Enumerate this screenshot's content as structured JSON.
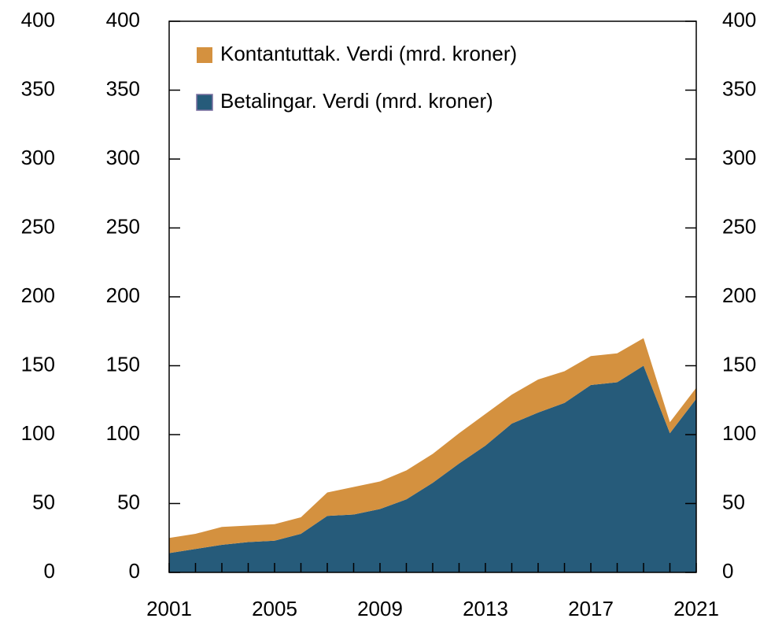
{
  "chart_data": {
    "type": "stacked-area",
    "x": [
      2001,
      2002,
      2003,
      2004,
      2005,
      2006,
      2007,
      2008,
      2009,
      2010,
      2011,
      2012,
      2013,
      2014,
      2015,
      2016,
      2017,
      2018,
      2019,
      2020,
      2021
    ],
    "xlim": [
      2001,
      2021
    ],
    "xticks": [
      2001,
      2005,
      2009,
      2013,
      2017,
      2021
    ],
    "ylim": [
      0,
      400
    ],
    "yticks": [
      0,
      50,
      100,
      150,
      200,
      250,
      300,
      350,
      400
    ],
    "legend": "top-left",
    "series": [
      {
        "name": "Betalingar. Verdi (mrd. kroner)",
        "color": "#265b7a",
        "values": [
          14,
          17,
          20,
          22,
          23,
          28,
          41,
          42,
          46,
          53,
          65,
          79,
          92,
          108,
          116,
          123,
          136,
          138,
          150,
          101,
          126
        ]
      },
      {
        "name": "Kontantuttak. Verdi (mrd. kroner)",
        "color": "#d4913f",
        "values": [
          11,
          11,
          13,
          12,
          12,
          12,
          17,
          20,
          20,
          21,
          21,
          22,
          23,
          21,
          24,
          23,
          21,
          21,
          20,
          8,
          8
        ]
      }
    ]
  }
}
